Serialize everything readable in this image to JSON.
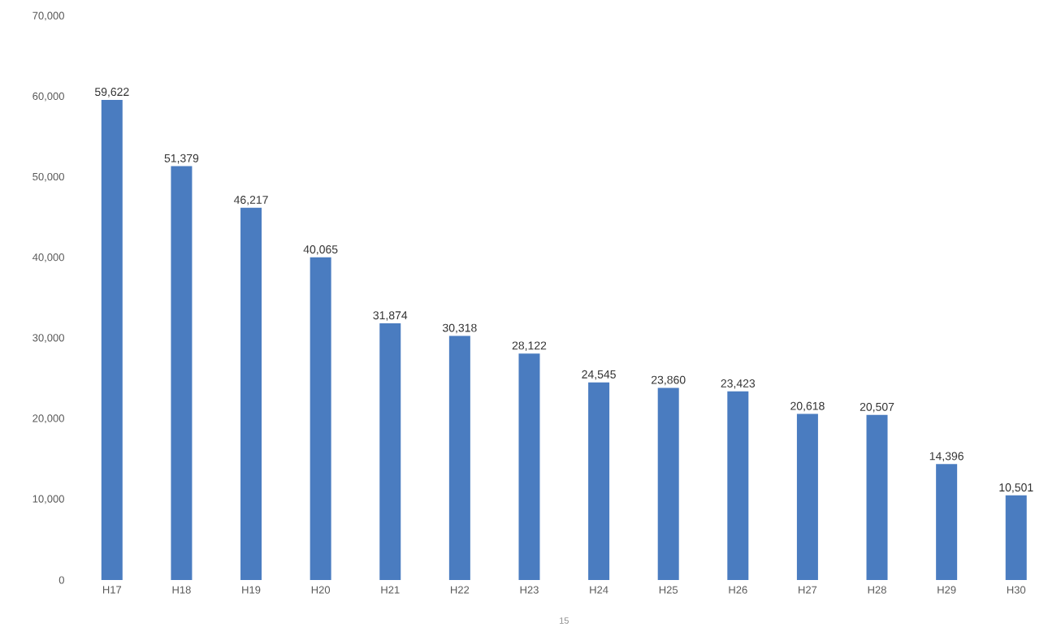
{
  "chart_data": {
    "type": "bar",
    "categories": [
      "H17",
      "H18",
      "H19",
      "H20",
      "H21",
      "H22",
      "H23",
      "H24",
      "H25",
      "H26",
      "H27",
      "H28",
      "H29",
      "H30"
    ],
    "values": [
      59622,
      51379,
      46217,
      40065,
      31874,
      30318,
      28122,
      24545,
      23860,
      23423,
      20618,
      20507,
      14396,
      10501
    ],
    "value_labels": [
      "59,622",
      "51,379",
      "46,217",
      "40,065",
      "31,874",
      "30,318",
      "28,122",
      "24,545",
      "23,860",
      "23,423",
      "20,618",
      "20,507",
      "14,396",
      "10,501"
    ],
    "color": "#4a7cc0",
    "ylim": [
      0,
      70000
    ],
    "yticks": [
      {
        "value": 0,
        "label": "0"
      },
      {
        "value": 10000,
        "label": "10,000"
      },
      {
        "value": 20000,
        "label": "20,000"
      },
      {
        "value": 30000,
        "label": "30,000"
      },
      {
        "value": 40000,
        "label": "40,000"
      },
      {
        "value": 50000,
        "label": "50,000"
      },
      {
        "value": 60000,
        "label": "60,000"
      },
      {
        "value": 70000,
        "label": "70,000"
      }
    ],
    "annotations": [
      "15"
    ]
  }
}
